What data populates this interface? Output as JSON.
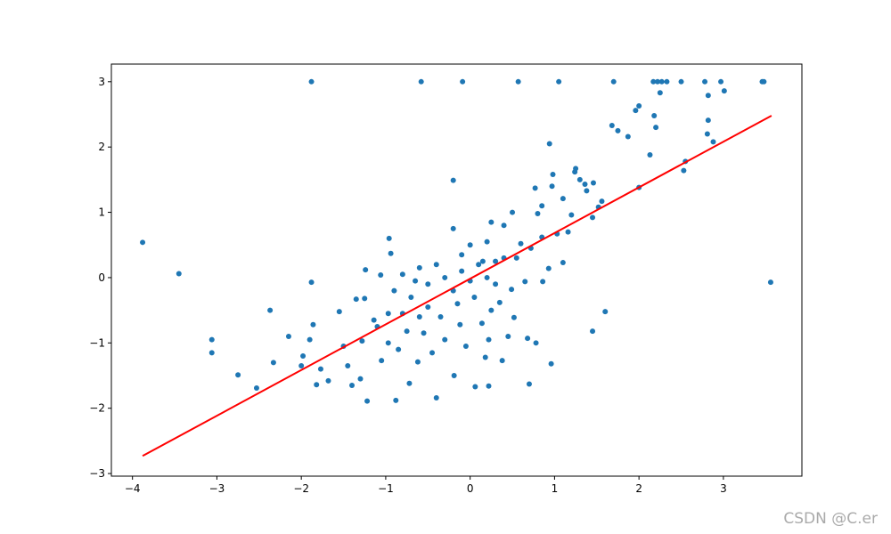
{
  "chart_data": {
    "type": "scatter",
    "xlim": [
      -4.25,
      3.93
    ],
    "ylim": [
      -3.04,
      3.27
    ],
    "xticks": [
      {
        "value": -4,
        "label": "−4"
      },
      {
        "value": -3,
        "label": "−3"
      },
      {
        "value": -2,
        "label": "−2"
      },
      {
        "value": -1,
        "label": "−1"
      },
      0,
      1,
      2,
      3
    ],
    "yticks": [
      {
        "value": -3,
        "label": "−3"
      },
      {
        "value": -2,
        "label": "−2"
      },
      {
        "value": -1,
        "label": "−1"
      },
      0,
      1,
      2,
      3
    ],
    "series": [
      {
        "color": "#1f77b4",
        "style": "points",
        "x": [
          -1.88,
          -0.58,
          -0.09,
          0.57,
          1.05,
          1.7,
          2.17,
          2.22,
          2.27,
          2.33,
          2.5,
          2.78,
          2.97,
          3.46,
          3.48,
          2.25,
          3.01,
          2.82,
          -3.88,
          -3.45,
          -3.06,
          -3.06,
          -2.75,
          -2.53,
          -2.33,
          -2.37,
          -2.0,
          -1.88,
          -1.86,
          -1.82,
          -1.77,
          -1.68,
          -1.55,
          -1.4,
          -1.3,
          -1.22,
          -0.88,
          -0.72,
          -0.4,
          -0.19,
          0.06,
          0.22,
          0.38,
          0.7,
          0.96,
          1.45,
          1.6,
          3.56,
          -0.2,
          0.94,
          1.68,
          1.75,
          1.87,
          1.96,
          2.0,
          2.13,
          2.18,
          2.2,
          2.82,
          2.81,
          2.88,
          2.53,
          2.55,
          2.0,
          1.24,
          1.25,
          1.3,
          1.36,
          1.38,
          1.46,
          1.56,
          1.52,
          1.45,
          1.2,
          1.1,
          0.98,
          0.97,
          0.77,
          0.85,
          0.8,
          1.16,
          1.03,
          0.85,
          0.72,
          0.6,
          1.1,
          0.93,
          0.86,
          0.65,
          0.49,
          0.35,
          0.52,
          0.78,
          0.68,
          0.22,
          0.18,
          0.14,
          -0.12,
          -0.3,
          -0.45,
          -0.62,
          -0.75,
          -0.97,
          -1.05,
          -1.28,
          -1.14,
          -0.97,
          -0.94,
          -0.96,
          -1.06,
          -1.24,
          -1.35,
          -1.25,
          -0.8,
          -0.6,
          -0.5,
          -0.4,
          -0.3,
          -0.2,
          -0.1,
          0.0,
          0.1,
          0.2,
          0.3,
          0.4,
          -0.7,
          -0.5,
          -0.35,
          -0.15,
          0.05,
          0.25,
          -0.8,
          -0.6,
          -0.2,
          0.0,
          0.2,
          0.4,
          0.5,
          0.25,
          -0.1,
          -0.9,
          -0.65,
          0.15,
          0.55,
          0.3,
          -1.5,
          -1.45,
          -1.1,
          -0.85,
          -0.55,
          -0.05,
          0.45,
          -1.98,
          -1.9,
          -2.15
        ],
        "values": [
          3,
          3,
          3,
          3,
          3,
          3,
          3,
          3,
          3,
          3,
          3,
          3,
          3,
          3,
          3,
          2.83,
          2.86,
          2.79,
          0.54,
          0.06,
          -0.95,
          -1.15,
          -1.49,
          -1.69,
          -1.3,
          -0.5,
          -1.35,
          -0.07,
          -0.72,
          -1.64,
          -1.4,
          -1.58,
          -0.52,
          -1.65,
          -1.55,
          -1.89,
          -1.88,
          -1.62,
          -1.84,
          -1.5,
          -1.67,
          -1.66,
          -1.27,
          -1.63,
          -1.32,
          -0.82,
          -0.52,
          -0.07,
          1.49,
          2.05,
          2.33,
          2.25,
          2.16,
          2.56,
          2.63,
          1.88,
          2.48,
          2.3,
          2.41,
          2.2,
          2.08,
          1.64,
          1.78,
          1.38,
          1.62,
          1.67,
          1.5,
          1.43,
          1.33,
          1.45,
          1.17,
          1.08,
          0.92,
          0.96,
          1.21,
          1.58,
          1.4,
          1.37,
          1.1,
          0.98,
          0.7,
          0.67,
          0.62,
          0.45,
          0.52,
          0.23,
          0.14,
          -0.06,
          -0.06,
          -0.18,
          -0.38,
          -0.61,
          -1.0,
          -0.93,
          -0.95,
          -1.22,
          -0.7,
          -0.72,
          -0.95,
          -1.15,
          -1.29,
          -0.82,
          -1.0,
          -1.27,
          -0.97,
          -0.65,
          -0.55,
          0.37,
          0.6,
          0.04,
          0.12,
          -0.33,
          -0.32,
          0.05,
          0.15,
          -0.1,
          0.2,
          0.0,
          -0.2,
          0.1,
          -0.05,
          0.2,
          0.0,
          0.25,
          0.3,
          -0.3,
          -0.45,
          -0.6,
          -0.4,
          -0.3,
          -0.5,
          -0.55,
          -0.6,
          0.75,
          0.5,
          0.55,
          0.8,
          1.0,
          0.85,
          0.35,
          -0.2,
          -0.05,
          0.25,
          0.3,
          -0.1,
          -1.05,
          -1.35,
          -0.75,
          -1.1,
          -0.85,
          -1.05,
          -0.9,
          -1.2,
          -0.95,
          -0.9
        ]
      },
      {
        "color": "#ff0000",
        "style": "line",
        "x": [
          -3.88,
          3.57
        ],
        "values": [
          -2.73,
          2.48
        ]
      }
    ],
    "watermark": "CSDN @C.er"
  }
}
